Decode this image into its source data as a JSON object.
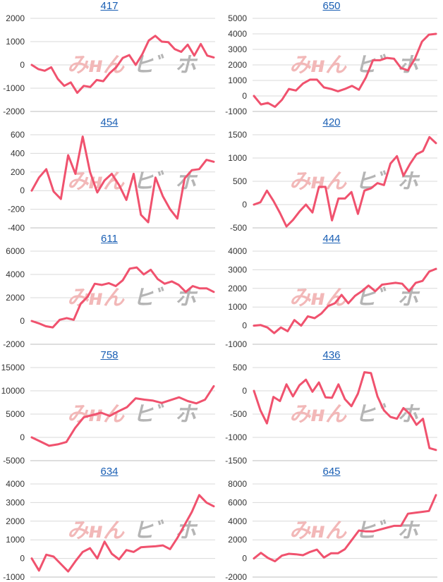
{
  "theme": {
    "line_color": "#f0526e",
    "grid_color": "#d9d9d9",
    "axis_color": "#bdbdbd",
    "title_color": "#1a5fb4",
    "watermark_left_color": "#f2b8b8",
    "watermark_right_color": "#b5b5b5"
  },
  "watermark": {
    "left_text": "みнん",
    "right_text": "ヒ゛ホ",
    "icon": "minrepo-watermark-logo"
  },
  "chart_data": [
    {
      "type": "line",
      "title": "417",
      "yticks": [
        2000,
        1000,
        0,
        -1000,
        -2000
      ],
      "ylim": [
        -2000,
        2000
      ],
      "values": [
        0,
        -180,
        -250,
        -100,
        -600,
        -900,
        -750,
        -1200,
        -900,
        -950,
        -650,
        -700,
        -350,
        -100,
        300,
        420,
        0,
        450,
        1050,
        1250,
        1000,
        980,
        680,
        560,
        870,
        400,
        900,
        400,
        320
      ]
    },
    {
      "type": "line",
      "title": "650",
      "yticks": [
        5000,
        4000,
        3000,
        2000,
        1000,
        0,
        -1000
      ],
      "ylim": [
        -1000,
        5000
      ],
      "values": [
        0,
        -550,
        -450,
        -700,
        -250,
        450,
        350,
        800,
        1050,
        1050,
        550,
        450,
        300,
        450,
        650,
        400,
        1200,
        2300,
        2300,
        2450,
        2400,
        1800,
        1650,
        2400,
        3500,
        3950,
        4000
      ]
    },
    {
      "type": "line",
      "title": "454",
      "yticks": [
        600,
        400,
        200,
        0,
        -200,
        -400
      ],
      "ylim": [
        -400,
        600
      ],
      "values": [
        0,
        140,
        230,
        -10,
        -90,
        380,
        180,
        580,
        200,
        -20,
        110,
        180,
        60,
        -100,
        180,
        -260,
        -340,
        140,
        -60,
        -200,
        -300,
        130,
        220,
        230,
        330,
        310
      ]
    },
    {
      "type": "line",
      "title": "420",
      "yticks": [
        1500,
        1000,
        500,
        0,
        -500
      ],
      "ylim": [
        -500,
        1500
      ],
      "values": [
        0,
        50,
        300,
        80,
        -180,
        -470,
        -330,
        -150,
        0,
        -170,
        380,
        380,
        -340,
        130,
        130,
        270,
        -200,
        300,
        350,
        460,
        420,
        880,
        1040,
        620,
        870,
        1080,
        1150,
        1450,
        1320
      ]
    },
    {
      "type": "line",
      "title": "611",
      "yticks": [
        6000,
        4000,
        2000,
        0,
        -2000
      ],
      "ylim": [
        -2000,
        6000
      ],
      "values": [
        0,
        -200,
        -450,
        -550,
        100,
        250,
        100,
        1500,
        2100,
        3200,
        3100,
        3250,
        3000,
        3500,
        4500,
        4600,
        4000,
        4400,
        3600,
        3200,
        3400,
        3100,
        2500,
        3000,
        2800,
        2800,
        2500
      ]
    },
    {
      "type": "line",
      "title": "444",
      "yticks": [
        4000,
        3000,
        2000,
        1000,
        0,
        -1000
      ],
      "ylim": [
        -1000,
        4000
      ],
      "values": [
        0,
        30,
        -100,
        -400,
        -100,
        -300,
        300,
        0,
        500,
        400,
        650,
        1050,
        1200,
        1650,
        1200,
        1600,
        1850,
        2150,
        1850,
        2200,
        2250,
        2300,
        2250,
        1850,
        2300,
        2400,
        2900,
        3050
      ]
    },
    {
      "type": "line",
      "title": "758",
      "yticks": [
        15000,
        10000,
        5000,
        0,
        -5000
      ],
      "ylim": [
        -5000,
        15000
      ],
      "values": [
        0,
        -900,
        -1800,
        -1500,
        -1000,
        2000,
        4300,
        4800,
        5300,
        4600,
        5600,
        6500,
        8400,
        8100,
        7900,
        7400,
        8000,
        8600,
        7800,
        7300,
        8100,
        11000
      ]
    },
    {
      "type": "line",
      "title": "436",
      "yticks": [
        500,
        0,
        -500,
        -1000,
        -1500
      ],
      "ylim": [
        -1500,
        500
      ],
      "values": [
        0,
        -420,
        -700,
        -130,
        -220,
        140,
        -120,
        120,
        240,
        -20,
        180,
        -140,
        -150,
        140,
        -180,
        -330,
        -60,
        400,
        380,
        -120,
        -420,
        -560,
        -600,
        -370,
        -500,
        -730,
        -600,
        -1230,
        -1270
      ]
    },
    {
      "type": "line",
      "title": "634",
      "yticks": [
        4000,
        3000,
        2000,
        1000,
        0,
        -1000
      ],
      "ylim": [
        -1000,
        4000
      ],
      "values": [
        0,
        -650,
        200,
        100,
        -300,
        -700,
        -150,
        350,
        550,
        0,
        900,
        250,
        -50,
        450,
        350,
        600,
        630,
        650,
        700,
        500,
        1100,
        1800,
        2500,
        3400,
        3000,
        2800
      ]
    },
    {
      "type": "line",
      "title": "645",
      "yticks": [
        8000,
        6000,
        4000,
        2000,
        0,
        -2000
      ],
      "ylim": [
        -2000,
        8000
      ],
      "values": [
        0,
        600,
        50,
        -300,
        300,
        500,
        450,
        350,
        700,
        950,
        100,
        550,
        550,
        1000,
        2000,
        3000,
        2900,
        2900,
        3100,
        3300,
        3500,
        3500,
        4800,
        4900,
        5000,
        5100,
        6800
      ]
    }
  ]
}
